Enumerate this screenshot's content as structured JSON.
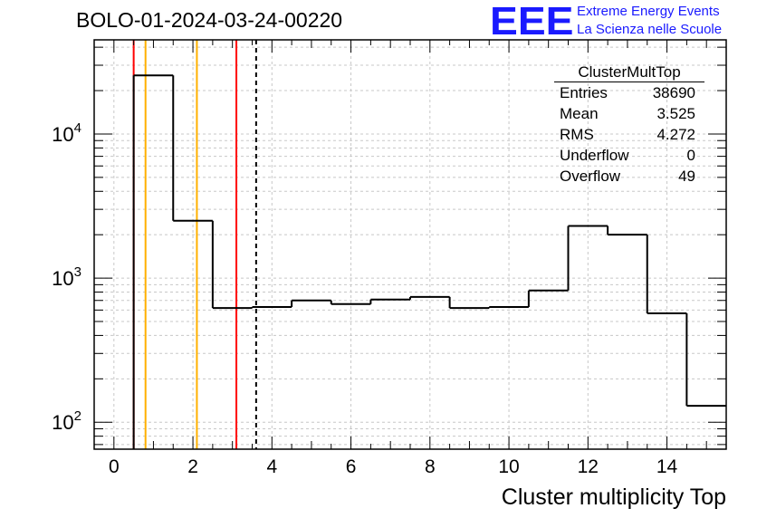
{
  "title": "BOLO-01-2024-03-24-00220",
  "logo": {
    "mark": "EEE",
    "line1": "Extreme Energy Events",
    "line2": "La Scienza nelle Scuole",
    "color": "#1a1aff"
  },
  "stats": {
    "name": "ClusterMultTop",
    "rows": [
      {
        "label": "Entries",
        "value": "38690"
      },
      {
        "label": "Mean",
        "value": "3.525"
      },
      {
        "label": "RMS",
        "value": "4.272"
      },
      {
        "label": "Underflow",
        "value": "0"
      },
      {
        "label": "Overflow",
        "value": "49"
      }
    ]
  },
  "chart_data": {
    "type": "histogram",
    "xlabel": "Cluster multiplicity Top",
    "ylabel": "",
    "xlim": [
      -0.5,
      15.5
    ],
    "ylim": [
      65,
      45000
    ],
    "yscale": "log",
    "grid": true,
    "x_ticks": [
      0,
      2,
      4,
      6,
      8,
      10,
      12,
      14
    ],
    "y_tick_labels": [
      {
        "base": "10",
        "exp": "2",
        "value": 100
      },
      {
        "base": "10",
        "exp": "3",
        "value": 1000
      },
      {
        "base": "10",
        "exp": "4",
        "value": 10000
      }
    ],
    "bin_edges": [
      0.5,
      1.5,
      2.5,
      3.5,
      4.5,
      5.5,
      6.5,
      7.5,
      8.5,
      9.5,
      10.5,
      11.5,
      12.5,
      13.5,
      14.5,
      15.5
    ],
    "values": [
      25500,
      2500,
      620,
      630,
      700,
      660,
      710,
      740,
      620,
      630,
      820,
      2300,
      2000,
      570,
      130
    ],
    "vertical_lines": [
      {
        "x": 0.5,
        "color": "#ff0000",
        "style": "solid"
      },
      {
        "x": 0.8,
        "color": "#ffb000",
        "style": "solid"
      },
      {
        "x": 2.1,
        "color": "#ffb000",
        "style": "solid"
      },
      {
        "x": 3.1,
        "color": "#ff0000",
        "style": "solid"
      },
      {
        "x": 3.6,
        "color": "#000000",
        "style": "dashed"
      }
    ]
  }
}
